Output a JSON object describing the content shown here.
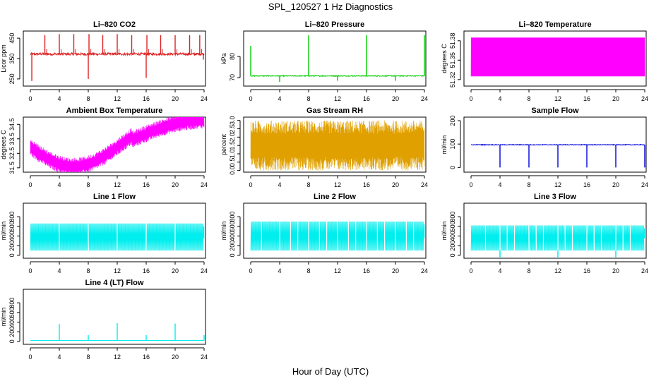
{
  "title": "SPL_120527  1 Hz Diagnostics",
  "xlabel": "Hour of Day (UTC)",
  "chart_data": [
    {
      "type": "line",
      "title": "Li–820 CO2",
      "ylabel": "Licor ppm",
      "color": "#dd2020",
      "xlim": [
        0,
        24
      ],
      "ylim": [
        215,
        485
      ],
      "xticks": [
        "0",
        "4",
        "8",
        "12",
        "16",
        "20",
        "24"
      ],
      "yticks": [
        {
          "v": 250,
          "label": "250"
        },
        {
          "v": 350,
          "label": "350"
        },
        {
          "v": 450,
          "label": "450"
        }
      ],
      "series": [
        {
          "name": "CO2",
          "pattern": "co2",
          "base": 372,
          "noise": 6,
          "spikes": [
            [
              0.2,
              240
            ],
            [
              2,
              465
            ],
            [
              4,
              470
            ],
            [
              6,
              470
            ],
            [
              8,
              250
            ],
            [
              8.1,
              470
            ],
            [
              10,
              465
            ],
            [
              12,
              470
            ],
            [
              14,
              465
            ],
            [
              16,
              255
            ],
            [
              16.1,
              465
            ],
            [
              18,
              465
            ],
            [
              20,
              465
            ],
            [
              22,
              465
            ],
            [
              23.4,
              465
            ],
            [
              23.9,
              345
            ]
          ]
        }
      ]
    },
    {
      "type": "line",
      "title": "Li–820 Pressure",
      "ylabel": "kPa",
      "color": "#00cc00",
      "xlim": [
        0,
        24
      ],
      "ylim": [
        66,
        92
      ],
      "xticks": [
        "0",
        "4",
        "8",
        "12",
        "16",
        "20",
        "24"
      ],
      "yticks": [
        {
          "v": 70,
          "label": "70"
        },
        {
          "v": 80,
          "label": "80"
        }
      ],
      "series": [
        {
          "name": "Pressure",
          "pattern": "pressure",
          "base": 70.8,
          "noise": 0.2,
          "spikes": [
            [
              0,
              85
            ],
            [
              4,
              68
            ],
            [
              8,
              90
            ],
            [
              12,
              68.5
            ],
            [
              16,
              90
            ],
            [
              20,
              68.5
            ],
            [
              24,
              90
            ]
          ]
        }
      ]
    },
    {
      "type": "line",
      "title": "Li–820 Temperature",
      "ylabel": "degrees C",
      "color": "#ff00ff",
      "xlim": [
        0,
        24
      ],
      "ylim": [
        51.31,
        51.395
      ],
      "xticks": [
        "0",
        "4",
        "8",
        "12",
        "16",
        "20",
        "24"
      ],
      "yticks": [
        {
          "v": 51.32,
          "label": "51.32"
        },
        {
          "v": 51.35,
          "label": "51.35"
        },
        {
          "v": 51.38,
          "label": "51.38"
        }
      ],
      "series": [
        {
          "name": "Temperature",
          "pattern": "temp",
          "base": 51.35,
          "noise": 0.02,
          "spikes": []
        }
      ]
    },
    {
      "type": "line",
      "title": "Ambient Box Temperature",
      "ylabel": "degrees C",
      "color": "#ff00ff",
      "xlim": [
        0,
        24
      ],
      "ylim": [
        31.2,
        35
      ],
      "xticks": [
        "0",
        "4",
        "8",
        "12",
        "16",
        "20",
        "24"
      ],
      "yticks": [
        {
          "v": 31.5,
          "label": "31.5"
        },
        {
          "v": 32.5,
          "label": "32.5"
        },
        {
          "v": 33.5,
          "label": "33.5"
        },
        {
          "v": 34.5,
          "label": "34.5"
        }
      ],
      "series": [
        {
          "name": "Ambient",
          "pattern": "ambient",
          "base": 33,
          "noise": 0.4,
          "spikes": []
        }
      ]
    },
    {
      "type": "line",
      "title": "Gas Stream RH",
      "ylabel": "percent",
      "color": "#e0a000",
      "xlim": [
        0,
        24
      ],
      "ylim": [
        -0.1,
        3.2
      ],
      "xticks": [
        "0",
        "4",
        "8",
        "12",
        "16",
        "20",
        "24"
      ],
      "yticks": [
        {
          "v": 0,
          "label": "0.0"
        },
        {
          "v": 0.5,
          "label": "0.5"
        },
        {
          "v": 1,
          "label": "1.0"
        },
        {
          "v": 1.5,
          "label": "1.5"
        },
        {
          "v": 2,
          "label": "2.0"
        },
        {
          "v": 2.5,
          "label": "2.5"
        },
        {
          "v": 3,
          "label": "3.0"
        }
      ],
      "series": [
        {
          "name": "RH",
          "pattern": "rh",
          "base": 1.5,
          "noise": 0.9,
          "spikes": []
        }
      ]
    },
    {
      "type": "line",
      "title": "Sample Flow",
      "ylabel": "ml/min",
      "color": "#0000dd",
      "xlim": [
        0,
        24
      ],
      "ylim": [
        -20,
        215
      ],
      "xticks": [
        "0",
        "4",
        "8",
        "12",
        "16",
        "20",
        "24"
      ],
      "yticks": [
        {
          "v": 0,
          "label": "0"
        },
        {
          "v": 100,
          "label": "100"
        },
        {
          "v": 200,
          "label": "200"
        }
      ],
      "series": [
        {
          "name": "Sample",
          "pattern": "sample",
          "base": 97,
          "noise": 1.5,
          "spikes": [
            [
              4,
              0
            ],
            [
              8,
              0
            ],
            [
              12,
              0
            ],
            [
              16,
              0
            ],
            [
              20,
              0
            ],
            [
              24,
              0
            ]
          ]
        }
      ]
    },
    {
      "type": "line",
      "title": "Line 1 Flow",
      "ylabel": "ml/min",
      "color": "#00eeee",
      "xlim": [
        0,
        24
      ],
      "ylim": [
        -60,
        1080
      ],
      "xticks": [
        "0",
        "4",
        "8",
        "12",
        "16",
        "20",
        "24"
      ],
      "yticks": [
        {
          "v": 0,
          "label": "0"
        },
        {
          "v": 200,
          "label": "200"
        },
        {
          "v": 400,
          "label": "400"
        },
        {
          "v": 600,
          "label": "600"
        },
        {
          "v": 800,
          "label": "800"
        }
      ],
      "series": [
        {
          "name": "Line1",
          "pattern": "band",
          "base": 100,
          "top": 660,
          "gaps": [
            4,
            8,
            12,
            16,
            20
          ]
        }
      ]
    },
    {
      "type": "line",
      "title": "Line 2 Flow",
      "ylabel": "ml/min",
      "color": "#00eeee",
      "xlim": [
        0,
        24
      ],
      "ylim": [
        -60,
        1080
      ],
      "xticks": [
        "0",
        "4",
        "8",
        "12",
        "16",
        "20",
        "24"
      ],
      "yticks": [
        {
          "v": 0,
          "label": "0"
        },
        {
          "v": 200,
          "label": "200"
        },
        {
          "v": 400,
          "label": "400"
        },
        {
          "v": 600,
          "label": "600"
        },
        {
          "v": 800,
          "label": "800"
        }
      ],
      "series": [
        {
          "name": "Line2",
          "pattern": "band",
          "base": 100,
          "top": 700,
          "gaps": [
            1.5,
            4,
            5.5,
            6.5,
            8,
            9.5,
            10.5,
            12,
            13.5,
            14.5,
            16,
            17.5,
            18.5,
            20,
            21.5,
            22.5
          ]
        }
      ]
    },
    {
      "type": "line",
      "title": "Line 3 Flow",
      "ylabel": "ml/min",
      "color": "#00eeee",
      "xlim": [
        0,
        24
      ],
      "ylim": [
        -60,
        1080
      ],
      "xticks": [
        "0",
        "4",
        "8",
        "12",
        "16",
        "20",
        "24"
      ],
      "yticks": [
        {
          "v": 0,
          "label": "0"
        },
        {
          "v": 200,
          "label": "200"
        },
        {
          "v": 400,
          "label": "400"
        },
        {
          "v": 600,
          "label": "600"
        },
        {
          "v": 800,
          "label": "800"
        }
      ],
      "series": [
        {
          "name": "Line3",
          "pattern": "band",
          "base": 100,
          "top": 620,
          "gaps": [
            2,
            4,
            5,
            6,
            8,
            9,
            10,
            12,
            13,
            14,
            16,
            17,
            18,
            20,
            21,
            22
          ],
          "dips": [
            4,
            12,
            20
          ]
        }
      ]
    },
    {
      "type": "line",
      "title": "Line 4 (LT) Flow",
      "ylabel": "ml/min",
      "color": "#00eeee",
      "xlim": [
        0,
        24
      ],
      "ylim": [
        -60,
        1080
      ],
      "xticks": [
        "0",
        "4",
        "8",
        "12",
        "16",
        "20",
        "24"
      ],
      "yticks": [
        {
          "v": 0,
          "label": "0"
        },
        {
          "v": 200,
          "label": "200"
        },
        {
          "v": 400,
          "label": "400"
        },
        {
          "v": 600,
          "label": "600"
        },
        {
          "v": 800,
          "label": "800"
        }
      ],
      "series": [
        {
          "name": "Line4",
          "pattern": "flat",
          "base": 20,
          "spikes": [
            [
              4,
              360
            ],
            [
              8,
              130
            ],
            [
              12,
              380
            ],
            [
              16,
              130
            ],
            [
              20,
              370
            ],
            [
              24,
              130
            ]
          ]
        }
      ]
    }
  ]
}
